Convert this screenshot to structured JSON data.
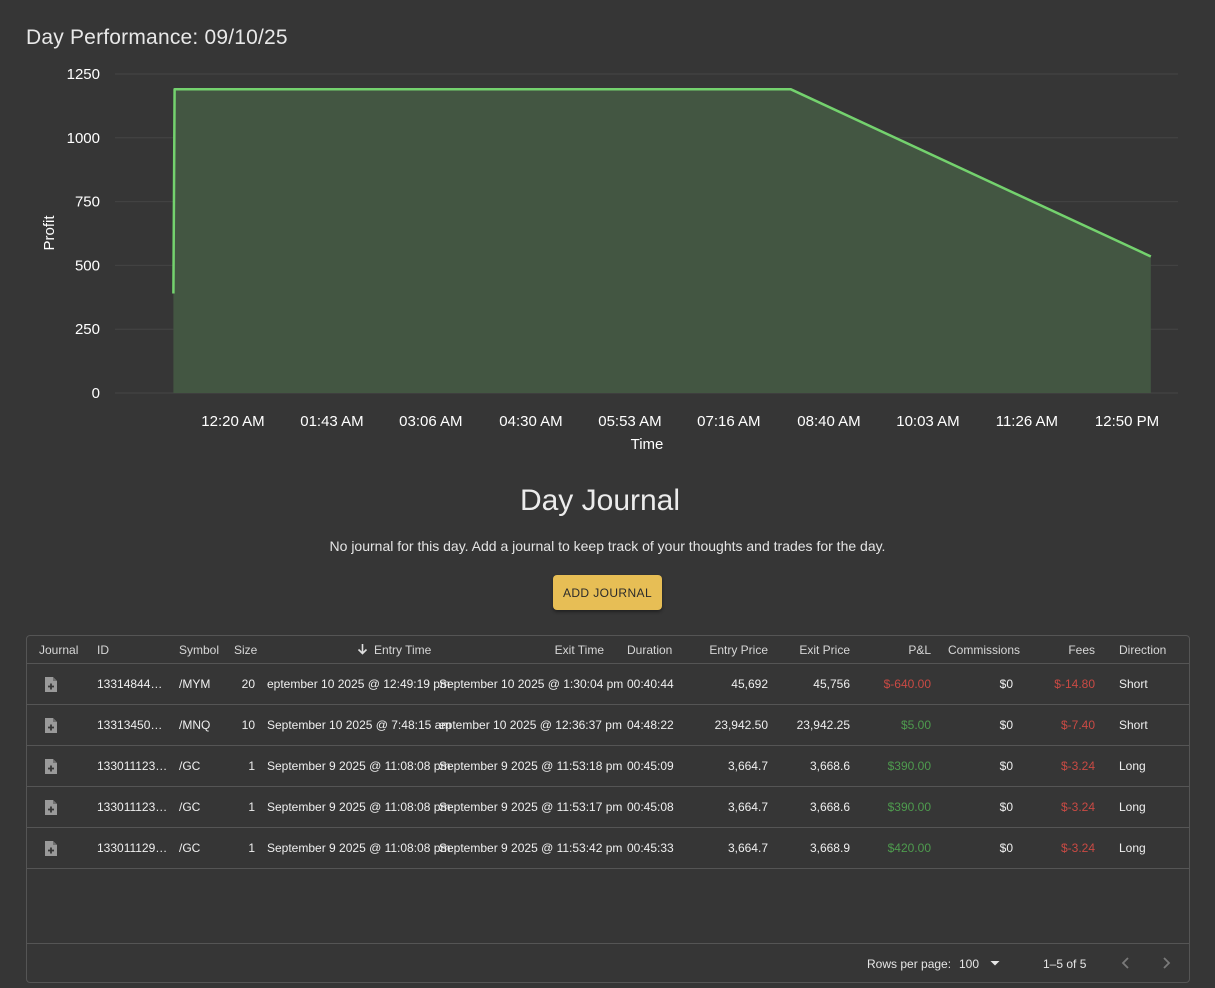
{
  "page": {
    "title": "Day Performance: 09/10/25"
  },
  "chart_data": {
    "type": "area",
    "xlabel": "Time",
    "ylabel": "Profit",
    "ylim": [
      0,
      1250
    ],
    "yticks": [
      0,
      250,
      500,
      750,
      1000,
      1250
    ],
    "xticks": [
      "12:20 AM",
      "01:43 AM",
      "03:06 AM",
      "04:30 AM",
      "05:53 AM",
      "07:16 AM",
      "08:40 AM",
      "10:03 AM",
      "11:26 AM",
      "12:50 PM"
    ],
    "x_minutes": [
      0,
      83,
      166,
      250,
      333,
      416,
      500,
      583,
      666,
      750
    ],
    "series": [
      {
        "points": [
          {
            "t_minutes": -50,
            "y": 390
          },
          {
            "t_minutes": -49,
            "y": 1190
          },
          {
            "t_minutes": 468,
            "y": 1190
          },
          {
            "t_minutes": 770,
            "y": 535
          }
        ]
      }
    ],
    "grid": true,
    "colors": {
      "line": "#74d26e",
      "fill": "#435642",
      "grid": "#454545"
    }
  },
  "journal": {
    "title": "Day Journal",
    "message": "No journal for this day. Add a journal to keep track of your thoughts and trades for the day.",
    "add_button": "ADD JOURNAL"
  },
  "table": {
    "headers": {
      "journal": "Journal",
      "id": "ID",
      "symbol": "Symbol",
      "size": "Size",
      "entry_time": "Entry Time",
      "exit_time": "Exit Time",
      "duration": "Duration",
      "entry_price": "Entry Price",
      "exit_price": "Exit Price",
      "pnl": "P&L",
      "commissions": "Commissions",
      "fees": "Fees",
      "direction": "Direction"
    },
    "rows": [
      {
        "id": "13314844…",
        "symbol": "/MYM",
        "size": "20",
        "entry_time": "eptember 10 2025 @ 12:49:19 pm",
        "exit_time": "September 10 2025 @ 1:30:04 pm",
        "duration": "00:40:44",
        "entry_price": "45,692",
        "exit_price": "45,756",
        "pnl": "$-640.00",
        "commissions": "$0",
        "fees": "$-14.80",
        "direction": "Short"
      },
      {
        "id": "13313450…",
        "symbol": "/MNQ",
        "size": "10",
        "entry_time": "September 10 2025 @ 7:48:15 am",
        "exit_time": "eptember 10 2025 @ 12:36:37 pm",
        "duration": "04:48:22",
        "entry_price": "23,942.50",
        "exit_price": "23,942.25",
        "pnl": "$5.00",
        "commissions": "$0",
        "fees": "$-7.40",
        "direction": "Short"
      },
      {
        "id": "133011123…",
        "symbol": "/GC",
        "size": "1",
        "entry_time": "September 9 2025 @ 11:08:08 pm",
        "exit_time": "September 9 2025 @ 11:53:18 pm",
        "duration": "00:45:09",
        "entry_price": "3,664.7",
        "exit_price": "3,668.6",
        "pnl": "$390.00",
        "commissions": "$0",
        "fees": "$-3.24",
        "direction": "Long"
      },
      {
        "id": "133011123…",
        "symbol": "/GC",
        "size": "1",
        "entry_time": "September 9 2025 @ 11:08:08 pm",
        "exit_time": "September 9 2025 @ 11:53:17 pm",
        "duration": "00:45:08",
        "entry_price": "3,664.7",
        "exit_price": "3,668.6",
        "pnl": "$390.00",
        "commissions": "$0",
        "fees": "$-3.24",
        "direction": "Long"
      },
      {
        "id": "133011129…",
        "symbol": "/GC",
        "size": "1",
        "entry_time": "September 9 2025 @ 11:08:08 pm",
        "exit_time": "September 9 2025 @ 11:53:42 pm",
        "duration": "00:45:33",
        "entry_price": "3,664.7",
        "exit_price": "3,668.9",
        "pnl": "$420.00",
        "commissions": "$0",
        "fees": "$-3.24",
        "direction": "Long"
      }
    ],
    "footer": {
      "rows_per_page_label": "Rows per page:",
      "rows_per_page_value": "100",
      "range": "1–5 of 5"
    },
    "icons": {
      "journal_cell": "add-document-icon",
      "sort": "arrow-down-icon",
      "select": "caret-down-icon",
      "prev": "chevron-left-icon",
      "next": "chevron-right-icon"
    },
    "colors": {
      "negative": "#c94a44",
      "positive": "#4e9b4e"
    }
  }
}
